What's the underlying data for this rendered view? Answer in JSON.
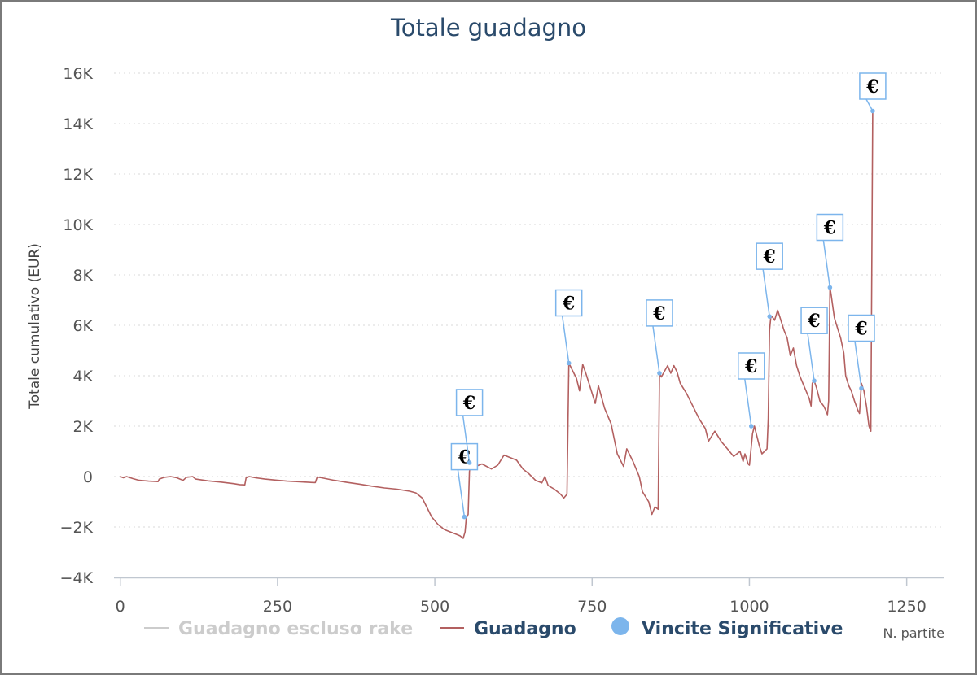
{
  "chart_data": {
    "type": "line",
    "title": "Totale guadagno",
    "xlabel": "N. partite",
    "ylabel": "Totale cumulativo (EUR)",
    "xlim": [
      -10,
      1310
    ],
    "ylim": [
      -4000,
      16000
    ],
    "xticks": [
      0,
      250,
      500,
      750,
      1000,
      1250
    ],
    "xtick_labels": [
      "0",
      "250",
      "500",
      "750",
      "1000",
      "1250"
    ],
    "yticks": [
      -4000,
      -2000,
      0,
      2000,
      4000,
      6000,
      8000,
      10000,
      12000,
      14000,
      16000
    ],
    "ytick_labels": [
      "−4K",
      "−2K",
      "0",
      "2K",
      "4K",
      "6K",
      "8K",
      "10K",
      "12K",
      "14K",
      "16K"
    ],
    "grid": true,
    "legend_position": "bottom",
    "legend": [
      {
        "name": "Guadagno escluso rake",
        "color": "#cccccc",
        "marker": "line"
      },
      {
        "name": "Guadagno",
        "color": "#b36060",
        "marker": "line"
      },
      {
        "name": "Vincite Significative",
        "color": "#7cb5ec",
        "marker": "circle"
      }
    ],
    "series": [
      {
        "name": "Guadagno",
        "color": "#b36060",
        "points": [
          [
            0,
            0
          ],
          [
            5,
            -50
          ],
          [
            10,
            0
          ],
          [
            20,
            -80
          ],
          [
            30,
            -150
          ],
          [
            45,
            -180
          ],
          [
            60,
            -200
          ],
          [
            62,
            -100
          ],
          [
            70,
            -30
          ],
          [
            80,
            0
          ],
          [
            90,
            -50
          ],
          [
            95,
            -100
          ],
          [
            100,
            -150
          ],
          [
            105,
            -30
          ],
          [
            115,
            0
          ],
          [
            120,
            -100
          ],
          [
            140,
            -170
          ],
          [
            160,
            -220
          ],
          [
            180,
            -280
          ],
          [
            190,
            -320
          ],
          [
            198,
            -330
          ],
          [
            200,
            -50
          ],
          [
            205,
            0
          ],
          [
            215,
            -50
          ],
          [
            230,
            -100
          ],
          [
            250,
            -150
          ],
          [
            265,
            -180
          ],
          [
            280,
            -200
          ],
          [
            300,
            -230
          ],
          [
            310,
            -240
          ],
          [
            313,
            -20
          ],
          [
            320,
            -50
          ],
          [
            340,
            -150
          ],
          [
            360,
            -230
          ],
          [
            380,
            -300
          ],
          [
            400,
            -380
          ],
          [
            420,
            -450
          ],
          [
            440,
            -500
          ],
          [
            460,
            -580
          ],
          [
            470,
            -650
          ],
          [
            480,
            -850
          ],
          [
            485,
            -1100
          ],
          [
            495,
            -1600
          ],
          [
            505,
            -1900
          ],
          [
            515,
            -2100
          ],
          [
            525,
            -2200
          ],
          [
            535,
            -2300
          ],
          [
            540,
            -2350
          ],
          [
            545,
            -2450
          ],
          [
            548,
            -2200
          ],
          [
            550,
            -1650
          ],
          [
            553,
            -1500
          ],
          [
            555,
            200
          ],
          [
            557,
            550
          ],
          [
            565,
            400
          ],
          [
            575,
            500
          ],
          [
            590,
            300
          ],
          [
            600,
            450
          ],
          [
            610,
            850
          ],
          [
            620,
            750
          ],
          [
            630,
            650
          ],
          [
            640,
            300
          ],
          [
            650,
            100
          ],
          [
            660,
            -150
          ],
          [
            670,
            -250
          ],
          [
            675,
            0
          ],
          [
            680,
            -350
          ],
          [
            690,
            -500
          ],
          [
            700,
            -700
          ],
          [
            705,
            -850
          ],
          [
            710,
            -700
          ],
          [
            713,
            4500
          ],
          [
            720,
            4150
          ],
          [
            725,
            3900
          ],
          [
            730,
            3400
          ],
          [
            735,
            4450
          ],
          [
            740,
            4100
          ],
          [
            745,
            3700
          ],
          [
            750,
            3300
          ],
          [
            755,
            2900
          ],
          [
            760,
            3600
          ],
          [
            770,
            2700
          ],
          [
            780,
            2100
          ],
          [
            790,
            900
          ],
          [
            800,
            400
          ],
          [
            805,
            1100
          ],
          [
            815,
            600
          ],
          [
            825,
            0
          ],
          [
            830,
            -600
          ],
          [
            840,
            -1000
          ],
          [
            845,
            -1500
          ],
          [
            850,
            -1200
          ],
          [
            855,
            -1300
          ],
          [
            857,
            4100
          ],
          [
            860,
            3950
          ],
          [
            870,
            4400
          ],
          [
            875,
            4100
          ],
          [
            880,
            4400
          ],
          [
            885,
            4150
          ],
          [
            890,
            3700
          ],
          [
            900,
            3300
          ],
          [
            910,
            2800
          ],
          [
            920,
            2300
          ],
          [
            930,
            1900
          ],
          [
            935,
            1400
          ],
          [
            945,
            1800
          ],
          [
            955,
            1400
          ],
          [
            965,
            1100
          ],
          [
            975,
            800
          ],
          [
            985,
            1000
          ],
          [
            990,
            600
          ],
          [
            993,
            900
          ],
          [
            998,
            500
          ],
          [
            1000,
            450
          ],
          [
            1003,
            1200
          ],
          [
            1005,
            1700
          ],
          [
            1008,
            2000
          ],
          [
            1012,
            1600
          ],
          [
            1016,
            1200
          ],
          [
            1020,
            900
          ],
          [
            1024,
            1000
          ],
          [
            1028,
            1100
          ],
          [
            1030,
            2300
          ],
          [
            1032,
            5800
          ],
          [
            1034,
            6300
          ],
          [
            1036,
            6350
          ],
          [
            1040,
            6200
          ],
          [
            1045,
            6600
          ],
          [
            1050,
            6200
          ],
          [
            1055,
            5800
          ],
          [
            1060,
            5500
          ],
          [
            1065,
            4800
          ],
          [
            1070,
            5100
          ],
          [
            1075,
            4400
          ],
          [
            1080,
            4000
          ],
          [
            1085,
            3700
          ],
          [
            1090,
            3400
          ],
          [
            1095,
            3100
          ],
          [
            1098,
            2800
          ],
          [
            1100,
            3700
          ],
          [
            1103,
            3800
          ],
          [
            1107,
            3500
          ],
          [
            1112,
            3000
          ],
          [
            1118,
            2800
          ],
          [
            1122,
            2600
          ],
          [
            1124,
            2450
          ],
          [
            1126,
            3000
          ],
          [
            1128,
            7500
          ],
          [
            1130,
            7200
          ],
          [
            1135,
            6300
          ],
          [
            1140,
            5900
          ],
          [
            1145,
            5500
          ],
          [
            1150,
            4900
          ],
          [
            1153,
            4000
          ],
          [
            1158,
            3600
          ],
          [
            1162,
            3400
          ],
          [
            1167,
            3000
          ],
          [
            1172,
            2650
          ],
          [
            1175,
            2500
          ],
          [
            1178,
            3700
          ],
          [
            1182,
            3400
          ],
          [
            1186,
            2800
          ],
          [
            1190,
            2000
          ],
          [
            1193,
            1800
          ],
          [
            1196,
            14500
          ],
          [
            1198,
            14500
          ]
        ]
      }
    ],
    "markers": {
      "name": "Vincite Significative",
      "color": "#7cb5ec",
      "symbol": "€",
      "points": [
        [
          547,
          -1600
        ],
        [
          555,
          550
        ],
        [
          713,
          4500
        ],
        [
          857,
          4100
        ],
        [
          1003,
          2000
        ],
        [
          1032,
          6350
        ],
        [
          1103,
          3800
        ],
        [
          1128,
          7500
        ],
        [
          1178,
          3500
        ],
        [
          1196,
          14500
        ]
      ]
    }
  }
}
